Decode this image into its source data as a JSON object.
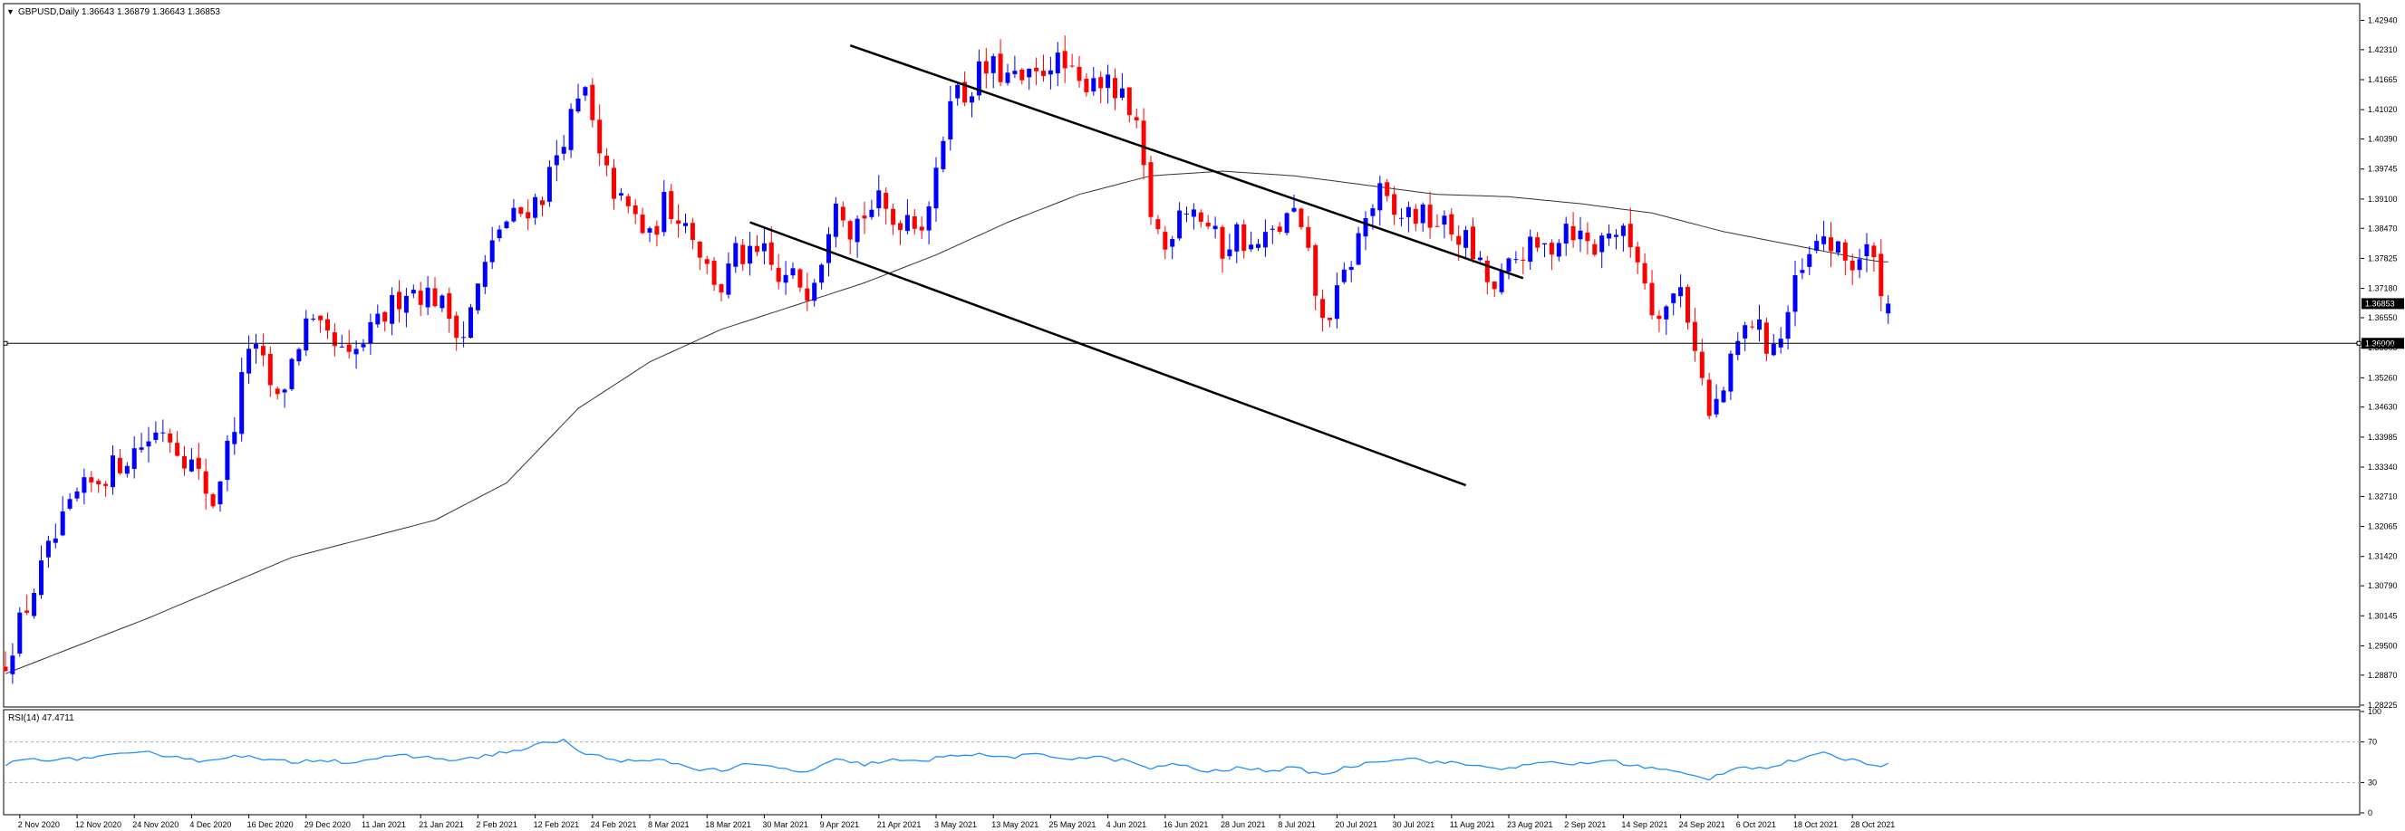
{
  "chart_data": [
    {
      "type": "candlestick",
      "title": "GBPUSD,Daily  1.36643 1.36879 1.36643 1.36853",
      "symbol_marker": "▼",
      "current_price": 1.36853,
      "current_price_label": "1.36853",
      "hline": 1.36,
      "hline_label": "1.36000",
      "ylim": [
        1.28225,
        1.4326
      ],
      "y_ticks": [
        "1.42940",
        "1.42310",
        "1.41665",
        "1.41020",
        "1.40390",
        "1.39745",
        "1.39100",
        "1.38470",
        "1.37825",
        "1.37180",
        "1.36550",
        "1.35905",
        "1.35260",
        "1.34630",
        "1.33985",
        "1.33340",
        "1.32710",
        "1.32065",
        "1.31420",
        "1.30790",
        "1.30145",
        "1.29500",
        "1.28870",
        "1.28225"
      ],
      "x_labels": [
        {
          "bar": 2,
          "label": "2 Nov 2020"
        },
        {
          "bar": 10,
          "label": "12 Nov 2020"
        },
        {
          "bar": 18,
          "label": "24 Nov 2020"
        },
        {
          "bar": 26,
          "label": "4 Dec 2020"
        },
        {
          "bar": 34,
          "label": "16 Dec 2020"
        },
        {
          "bar": 42,
          "label": "29 Dec 2020"
        },
        {
          "bar": 50,
          "label": "11 Jan 2021"
        },
        {
          "bar": 58,
          "label": "21 Jan 2021"
        },
        {
          "bar": 66,
          "label": "2 Feb 2021"
        },
        {
          "bar": 74,
          "label": "12 Feb 2021"
        },
        {
          "bar": 82,
          "label": "24 Feb 2021"
        },
        {
          "bar": 90,
          "label": "8 Mar 2021"
        },
        {
          "bar": 98,
          "label": "18 Mar 2021"
        },
        {
          "bar": 106,
          "label": "30 Mar 2021"
        },
        {
          "bar": 114,
          "label": "9 Apr 2021"
        },
        {
          "bar": 122,
          "label": "21 Apr 2021"
        },
        {
          "bar": 130,
          "label": "3 May 2021"
        },
        {
          "bar": 138,
          "label": "13 May 2021"
        },
        {
          "bar": 146,
          "label": "25 May 2021"
        },
        {
          "bar": 154,
          "label": "4 Jun 2021"
        },
        {
          "bar": 162,
          "label": "16 Jun 2021"
        },
        {
          "bar": 170,
          "label": "28 Jun 2021"
        },
        {
          "bar": 178,
          "label": "8 Jul 2021"
        },
        {
          "bar": 186,
          "label": "20 Jul 2021"
        },
        {
          "bar": 194,
          "label": "30 Jul 2021"
        },
        {
          "bar": 202,
          "label": "11 Aug 2021"
        },
        {
          "bar": 210,
          "label": "23 Aug 2021"
        },
        {
          "bar": 218,
          "label": "2 Sep 2021"
        },
        {
          "bar": 226,
          "label": "14 Sep 2021"
        },
        {
          "bar": 234,
          "label": "24 Sep 2021"
        },
        {
          "bar": 242,
          "label": "6 Oct 2021"
        },
        {
          "bar": 250,
          "label": "18 Oct 2021"
        },
        {
          "bar": 258,
          "label": "28 Oct 2021"
        }
      ],
      "anchors": [
        [
          0,
          1.292
        ],
        [
          6,
          1.315
        ],
        [
          10,
          1.327
        ],
        [
          14,
          1.332
        ],
        [
          18,
          1.337
        ],
        [
          22,
          1.342
        ],
        [
          26,
          1.334
        ],
        [
          29,
          1.326
        ],
        [
          32,
          1.343
        ],
        [
          34,
          1.36
        ],
        [
          36,
          1.355
        ],
        [
          38,
          1.347
        ],
        [
          40,
          1.356
        ],
        [
          42,
          1.364
        ],
        [
          44,
          1.362
        ],
        [
          48,
          1.356
        ],
        [
          52,
          1.364
        ],
        [
          56,
          1.372
        ],
        [
          60,
          1.37
        ],
        [
          64,
          1.362
        ],
        [
          66,
          1.372
        ],
        [
          69,
          1.385
        ],
        [
          72,
          1.388
        ],
        [
          75,
          1.392
        ],
        [
          78,
          1.405
        ],
        [
          81,
          1.414
        ],
        [
          83,
          1.399
        ],
        [
          86,
          1.39
        ],
        [
          88,
          1.387
        ],
        [
          90,
          1.382
        ],
        [
          92,
          1.39
        ],
        [
          94,
          1.388
        ],
        [
          96,
          1.384
        ],
        [
          98,
          1.376
        ],
        [
          100,
          1.372
        ],
        [
          102,
          1.379
        ],
        [
          104,
          1.378
        ],
        [
          106,
          1.379
        ],
        [
          108,
          1.373
        ],
        [
          110,
          1.374
        ],
        [
          112,
          1.372
        ],
        [
          114,
          1.379
        ],
        [
          116,
          1.393
        ],
        [
          118,
          1.385
        ],
        [
          120,
          1.388
        ],
        [
          122,
          1.39
        ],
        [
          124,
          1.386
        ],
        [
          126,
          1.388
        ],
        [
          128,
          1.386
        ],
        [
          130,
          1.395
        ],
        [
          132,
          1.415
        ],
        [
          134,
          1.413
        ],
        [
          136,
          1.418
        ],
        [
          138,
          1.419
        ],
        [
          140,
          1.417
        ],
        [
          142,
          1.416
        ],
        [
          144,
          1.417
        ],
        [
          146,
          1.421
        ],
        [
          148,
          1.419
        ],
        [
          150,
          1.415
        ],
        [
          152,
          1.418
        ],
        [
          154,
          1.415
        ],
        [
          156,
          1.412
        ],
        [
          158,
          1.405
        ],
        [
          160,
          1.388
        ],
        [
          162,
          1.38
        ],
        [
          164,
          1.39
        ],
        [
          166,
          1.389
        ],
        [
          168,
          1.385
        ],
        [
          170,
          1.38
        ],
        [
          172,
          1.384
        ],
        [
          174,
          1.38
        ],
        [
          176,
          1.382
        ],
        [
          178,
          1.385
        ],
        [
          180,
          1.388
        ],
        [
          182,
          1.378
        ],
        [
          184,
          1.364
        ],
        [
          186,
          1.37
        ],
        [
          188,
          1.378
        ],
        [
          190,
          1.387
        ],
        [
          192,
          1.392
        ],
        [
          194,
          1.387
        ],
        [
          196,
          1.388
        ],
        [
          198,
          1.387
        ],
        [
          200,
          1.386
        ],
        [
          202,
          1.384
        ],
        [
          204,
          1.382
        ],
        [
          206,
          1.376
        ],
        [
          208,
          1.371
        ],
        [
          210,
          1.376
        ],
        [
          212,
          1.38
        ],
        [
          214,
          1.38
        ],
        [
          216,
          1.381
        ],
        [
          218,
          1.386
        ],
        [
          220,
          1.383
        ],
        [
          222,
          1.38
        ],
        [
          224,
          1.385
        ],
        [
          226,
          1.383
        ],
        [
          228,
          1.379
        ],
        [
          230,
          1.368
        ],
        [
          232,
          1.368
        ],
        [
          234,
          1.372
        ],
        [
          236,
          1.36
        ],
        [
          238,
          1.344
        ],
        [
          240,
          1.35
        ],
        [
          242,
          1.36
        ],
        [
          244,
          1.365
        ],
        [
          246,
          1.36
        ],
        [
          248,
          1.361
        ],
        [
          250,
          1.372
        ],
        [
          252,
          1.378
        ],
        [
          254,
          1.383
        ],
        [
          256,
          1.379
        ],
        [
          258,
          1.377
        ],
        [
          260,
          1.38
        ],
        [
          262,
          1.373
        ],
        [
          263,
          1.3685
        ]
      ],
      "moving_average": [
        [
          0,
          1.289
        ],
        [
          20,
          1.301
        ],
        [
          40,
          1.314
        ],
        [
          60,
          1.322
        ],
        [
          70,
          1.33
        ],
        [
          80,
          1.346
        ],
        [
          90,
          1.356
        ],
        [
          100,
          1.363
        ],
        [
          110,
          1.368
        ],
        [
          120,
          1.373
        ],
        [
          130,
          1.379
        ],
        [
          140,
          1.386
        ],
        [
          150,
          1.392
        ],
        [
          160,
          1.396
        ],
        [
          170,
          1.397
        ],
        [
          180,
          1.396
        ],
        [
          190,
          1.394
        ],
        [
          200,
          1.392
        ],
        [
          210,
          1.3915
        ],
        [
          220,
          1.39
        ],
        [
          230,
          1.388
        ],
        [
          240,
          1.384
        ],
        [
          250,
          1.381
        ],
        [
          260,
          1.378
        ],
        [
          262,
          1.3775
        ]
      ],
      "trend_lines": [
        {
          "name": "upper-channel-line",
          "from": [
            118,
            1.424
          ],
          "to": [
            212,
            1.374
          ]
        },
        {
          "name": "lower-channel-line",
          "from": [
            104,
            1.386
          ],
          "to": [
            204,
            1.3295
          ]
        }
      ],
      "visible_bars": 264
    },
    {
      "type": "line",
      "title": "RSI(14) 47.4711",
      "ylim": [
        0,
        100
      ],
      "y_ticks": [
        "100",
        "70",
        "30",
        "0"
      ],
      "levels": [
        70,
        30
      ],
      "current_value": 47.4711,
      "anchors": [
        [
          0,
          48
        ],
        [
          4,
          54
        ],
        [
          8,
          52
        ],
        [
          12,
          55
        ],
        [
          16,
          57
        ],
        [
          20,
          59
        ],
        [
          24,
          56
        ],
        [
          28,
          50
        ],
        [
          32,
          58
        ],
        [
          36,
          52
        ],
        [
          40,
          50
        ],
        [
          44,
          53
        ],
        [
          48,
          50
        ],
        [
          52,
          54
        ],
        [
          56,
          56
        ],
        [
          60,
          54
        ],
        [
          64,
          52
        ],
        [
          68,
          58
        ],
        [
          72,
          62
        ],
        [
          76,
          70
        ],
        [
          78,
          72
        ],
        [
          80,
          60
        ],
        [
          84,
          54
        ],
        [
          88,
          50
        ],
        [
          92,
          52
        ],
        [
          96,
          44
        ],
        [
          100,
          42
        ],
        [
          104,
          48
        ],
        [
          108,
          44
        ],
        [
          112,
          40
        ],
        [
          116,
          52
        ],
        [
          120,
          48
        ],
        [
          124,
          52
        ],
        [
          128,
          50
        ],
        [
          132,
          58
        ],
        [
          136,
          57
        ],
        [
          140,
          55
        ],
        [
          144,
          57
        ],
        [
          148,
          54
        ],
        [
          152,
          55
        ],
        [
          156,
          52
        ],
        [
          160,
          44
        ],
        [
          164,
          48
        ],
        [
          168,
          40
        ],
        [
          172,
          44
        ],
        [
          176,
          42
        ],
        [
          180,
          44
        ],
        [
          184,
          38
        ],
        [
          188,
          46
        ],
        [
          192,
          52
        ],
        [
          196,
          54
        ],
        [
          200,
          50
        ],
        [
          204,
          48
        ],
        [
          208,
          44
        ],
        [
          212,
          46
        ],
        [
          216,
          50
        ],
        [
          220,
          48
        ],
        [
          224,
          52
        ],
        [
          228,
          46
        ],
        [
          232,
          42
        ],
        [
          236,
          36
        ],
        [
          238,
          34
        ],
        [
          242,
          46
        ],
        [
          246,
          44
        ],
        [
          250,
          52
        ],
        [
          254,
          58
        ],
        [
          258,
          52
        ],
        [
          262,
          47
        ]
      ]
    }
  ]
}
